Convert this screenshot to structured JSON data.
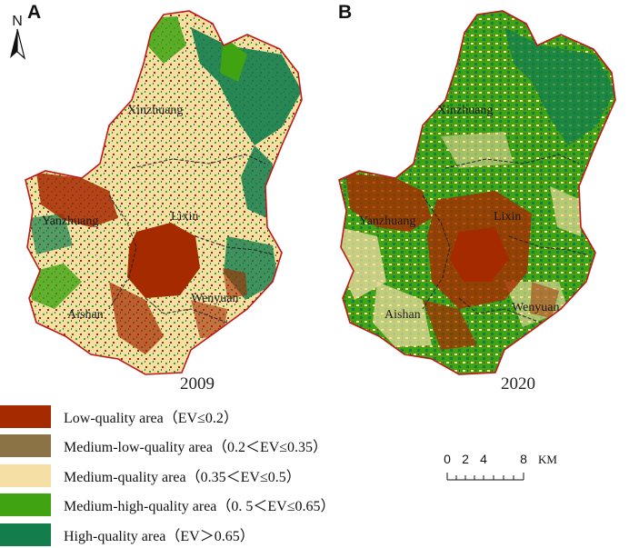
{
  "panels": [
    {
      "letter": "A",
      "year": "2009",
      "towns": [
        "Xinzhuang",
        "Yanzhuang",
        "Lixin",
        "Aishan",
        "Wenyuan"
      ]
    },
    {
      "letter": "B",
      "year": "2020",
      "towns": [
        "Xinzhuang",
        "Yanzhuang",
        "Lixin",
        "Aishan",
        "Wenyuan"
      ]
    }
  ],
  "north_arrow": {
    "label": "N"
  },
  "legend": [
    {
      "label": "Low-quality area（EV≤0.2）",
      "color": "#a52a00"
    },
    {
      "label": "Medium-low-quality area（0.2＜EV≤0.35）",
      "color": "#8b7346"
    },
    {
      "label": "Medium-quality area（0.35＜EV≤0.5）",
      "color": "#f6dfa5"
    },
    {
      "label": "Medium-high-quality area（0. 5＜EV≤0.65）",
      "color": "#3fa312"
    },
    {
      "label": "High-quality area（EV＞0.65）",
      "color": "#137d4c"
    }
  ],
  "scale_bar": {
    "ticks": [
      "0",
      "2",
      "4",
      "8"
    ],
    "unit": "KM"
  },
  "colors": {
    "boundary": "#c01818",
    "town_boundary": "#222222",
    "low": "#a52a00",
    "medium_low": "#8b7346",
    "medium": "#f6dfa5",
    "medium_high": "#3fa312",
    "high": "#137d4c"
  }
}
